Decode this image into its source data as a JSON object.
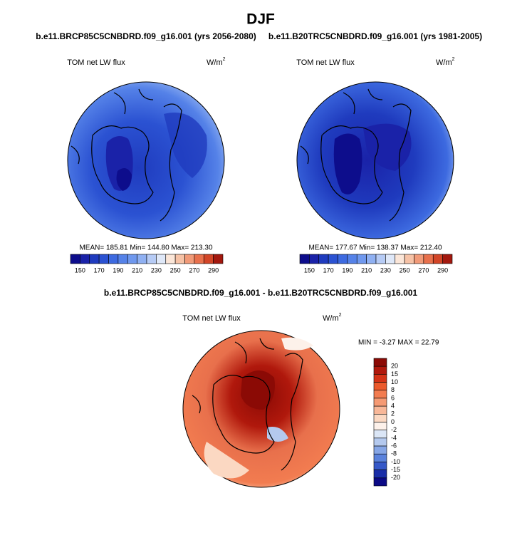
{
  "title": "DJF",
  "panels": [
    {
      "title": "b.e11.BRCP85C5CNBDRD.f09_g16.001 (yrs 2056-2080)",
      "variable": "TOM net LW flux",
      "units": "W/m",
      "units_exp": "2",
      "stats": "MEAN= 185.81  Min= 144.80  Max= 213.30"
    },
    {
      "title": "b.e11.B20TRC5CNBDRD.f09_g16.001 (yrs 1981-2005)",
      "variable": "TOM net LW flux",
      "units": "W/m",
      "units_exp": "2",
      "stats": "MEAN= 177.67  Min= 138.37  Max= 212.40"
    }
  ],
  "colorbar": {
    "labels": [
      150,
      170,
      190,
      210,
      230,
      250,
      270,
      290
    ],
    "colors": [
      "#0d0d8c",
      "#1a22a8",
      "#1f3bbe",
      "#2b52d2",
      "#3d6ae0",
      "#5582e8",
      "#6f98ee",
      "#8fb0f2",
      "#b6cbf5",
      "#dfe8f8",
      "#fbe6d8",
      "#f6c2a6",
      "#f19a78",
      "#e8704c",
      "#d24527",
      "#a3180e"
    ]
  },
  "difference": {
    "title": "b.e11.BRCP85C5CNBDRD.f09_g16.001 - b.e11.B20TRC5CNBDRD.f09_g16.001",
    "variable": "TOM net LW flux",
    "units": "W/m",
    "units_exp": "2",
    "stats": "MIN =  -3.27 MAX =  22.79",
    "colorbar": {
      "labels": [
        20,
        15,
        10,
        8,
        6,
        4,
        2,
        0,
        -2,
        -4,
        -6,
        -8,
        -10,
        -15,
        -20
      ],
      "colors": [
        "#8b0a05",
        "#b0180c",
        "#d43216",
        "#eb5a2c",
        "#f27c50",
        "#f59a74",
        "#f8b798",
        "#fbd8c2",
        "#fdf1ea",
        "#dbe6f6",
        "#b4c9ee",
        "#86a6e6",
        "#5a82dc",
        "#3558c8",
        "#1a2ea8",
        "#0c0a86"
      ]
    }
  }
}
